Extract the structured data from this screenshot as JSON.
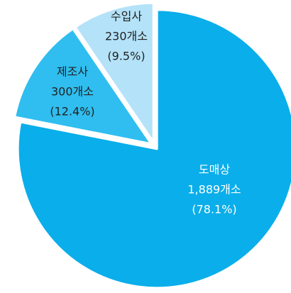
{
  "chart_data": {
    "type": "pie",
    "categories": [
      "도매상",
      "제조사",
      "수입사"
    ],
    "values": [
      1889,
      300,
      230
    ],
    "value_labels": [
      "1,889개소",
      "300개소",
      "230개소"
    ],
    "percents": [
      78.1,
      12.4,
      9.5
    ],
    "percent_labels": [
      "(78.1%)",
      "(12.4%)",
      "(9.5%)"
    ],
    "colors": [
      "#0aaeea",
      "#2fbeef",
      "#b4e2f8"
    ]
  }
}
